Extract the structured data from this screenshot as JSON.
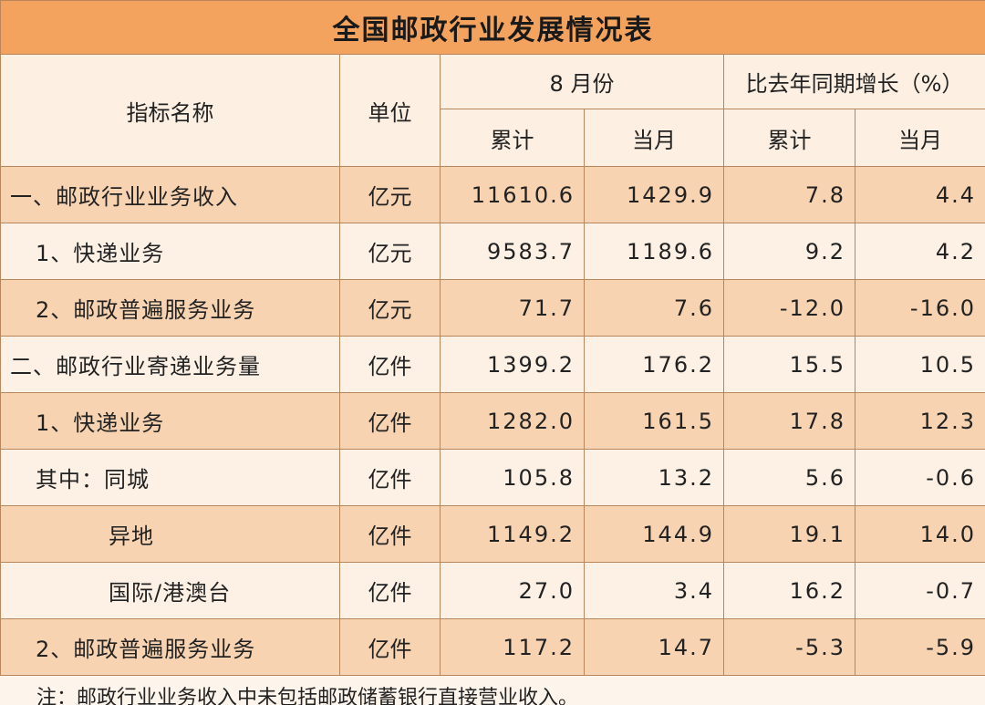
{
  "title": "全国邮政行业发展情况表",
  "header": {
    "indicator": "指标名称",
    "unit": "单位",
    "period": "8 月份",
    "growth": "比去年同期增长（%）",
    "cumulative": "累计",
    "month": "当月"
  },
  "rows": [
    {
      "name": "一、邮政行业业务收入",
      "unit": "亿元",
      "values": [
        "11610.6",
        "1429.9",
        "7.8",
        "4.4"
      ]
    },
    {
      "name": "1、快递业务",
      "unit": "亿元",
      "values": [
        "9583.7",
        "1189.6",
        "9.2",
        "4.2"
      ]
    },
    {
      "name": "2、邮政普遍服务业务",
      "unit": "亿元",
      "values": [
        "71.7",
        "7.6",
        "-12.0",
        "-16.0"
      ]
    },
    {
      "name": "二、邮政行业寄递业务量",
      "unit": "亿件",
      "values": [
        "1399.2",
        "176.2",
        "15.5",
        "10.5"
      ]
    },
    {
      "name": "1、快递业务",
      "unit": "亿件",
      "values": [
        "1282.0",
        "161.5",
        "17.8",
        "12.3"
      ]
    },
    {
      "name": "其中：同城",
      "unit": "亿件",
      "values": [
        "105.8",
        "13.2",
        "5.6",
        "-0.6"
      ]
    },
    {
      "name": "异地",
      "unit": "亿件",
      "values": [
        "1149.2",
        "144.9",
        "19.1",
        "14.0"
      ]
    },
    {
      "name": "国际/港澳台",
      "unit": "亿件",
      "values": [
        "27.0",
        "3.4",
        "16.2",
        "-0.7"
      ]
    },
    {
      "name": "2、邮政普遍服务业务",
      "unit": "亿件",
      "values": [
        "117.2",
        "14.7",
        "-5.3",
        "-5.9"
      ]
    }
  ],
  "note": "注：邮政行业业务收入中未包括邮政储蓄银行直接营业收入。"
}
